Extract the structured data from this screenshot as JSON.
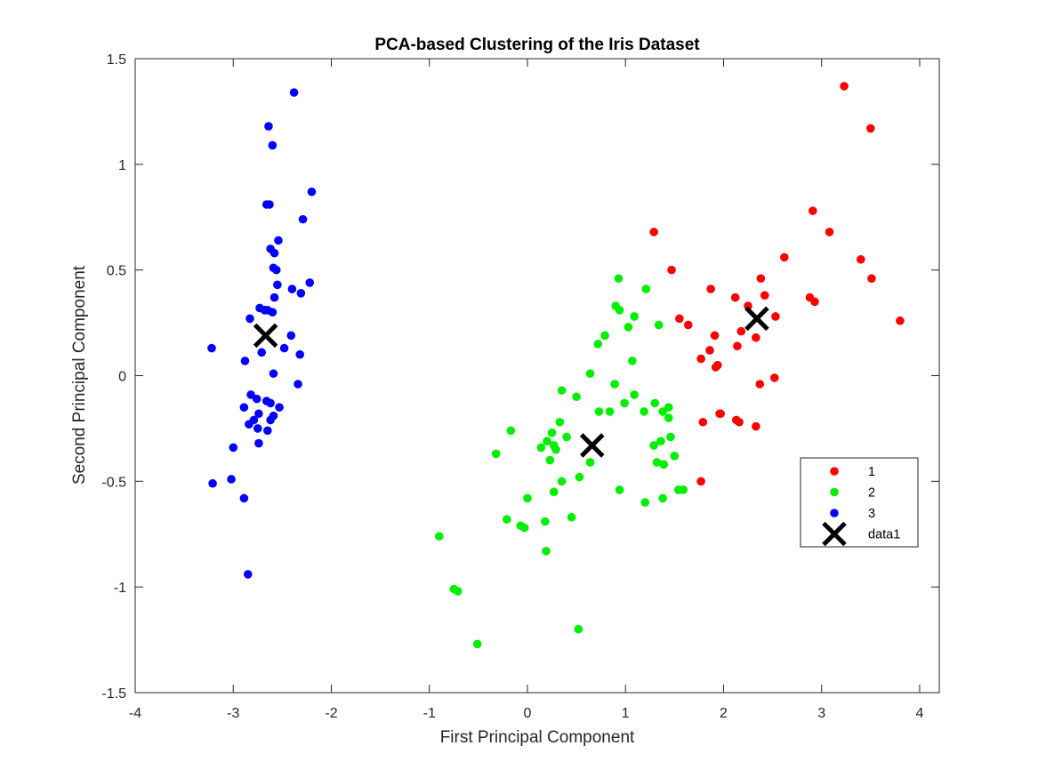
{
  "chart_data": {
    "type": "scatter",
    "title": "PCA-based Clustering of the Iris Dataset",
    "xlabel": "First Principal Component",
    "ylabel": "Second Principal Component",
    "xlim": [
      -4,
      4.2
    ],
    "ylim": [
      -1.5,
      1.5
    ],
    "xticks": [
      -4,
      -3,
      -2,
      -1,
      0,
      1,
      2,
      3,
      4
    ],
    "yticks": [
      -1.5,
      -1,
      -0.5,
      0,
      0.5,
      1,
      1.5
    ],
    "xtick_labels": [
      "-4",
      "-3",
      "-2",
      "-1",
      "0",
      "1",
      "2",
      "3",
      "4"
    ],
    "ytick_labels": [
      "-1.5",
      "-1",
      "-0.5",
      "0",
      "0.5",
      "1",
      "1.5"
    ],
    "grid": false,
    "legend_position": "lower-right",
    "series": [
      {
        "name": "1",
        "marker": "dot",
        "color": "#ff0000",
        "x": [
          3.23,
          3.5,
          1.29,
          2.91,
          3.08,
          3.4,
          3.51,
          1.47,
          2.62,
          1.87,
          2.12,
          2.38,
          2.42,
          2.53,
          1.55,
          1.64,
          2.88,
          2.93,
          3.8,
          2.25,
          2.33,
          1.91,
          1.94,
          1.77,
          2.14,
          2.18,
          1.86,
          1.92,
          1.96,
          2.37,
          2.52,
          1.97,
          2.13,
          2.16,
          2.33,
          1.79,
          1.77
        ],
        "y": [
          1.37,
          1.17,
          0.68,
          0.78,
          0.68,
          0.55,
          0.46,
          0.5,
          0.56,
          0.41,
          0.37,
          0.46,
          0.38,
          0.28,
          0.27,
          0.24,
          0.37,
          0.35,
          0.26,
          0.33,
          0.18,
          0.19,
          0.05,
          0.08,
          0.14,
          0.21,
          0.12,
          0.04,
          -0.18,
          -0.04,
          -0.01,
          -0.18,
          -0.21,
          -0.22,
          -0.24,
          -0.22,
          -0.5
        ]
      },
      {
        "name": "2",
        "marker": "dot",
        "color": "#00ee00",
        "x": [
          0.93,
          1.21,
          0.9,
          0.94,
          1.09,
          1.03,
          1.34,
          0.79,
          0.72,
          0.64,
          1.07,
          1.09,
          0.89,
          0.99,
          0.35,
          0.5,
          1.19,
          1.3,
          1.38,
          1.44,
          0.84,
          0.73,
          0.33,
          0.25,
          0.2,
          0.27,
          0.29,
          0.23,
          0.4,
          0.35,
          -0.17,
          -0.32,
          0.14,
          0.53,
          0.64,
          0.94,
          0.27,
          0.0,
          0.18,
          0.45,
          -0.21,
          -0.07,
          -0.03,
          0.19,
          1.2,
          1.38,
          1.54,
          1.59,
          1.29,
          1.32,
          1.36,
          1.44,
          1.39,
          1.46,
          1.5,
          -0.9,
          -0.75,
          -0.71,
          -0.51,
          0.52
        ],
        "y": [
          0.46,
          0.41,
          0.33,
          0.31,
          0.28,
          0.23,
          0.24,
          0.19,
          0.15,
          0.01,
          0.07,
          -0.09,
          -0.04,
          -0.13,
          -0.07,
          -0.1,
          -0.17,
          -0.13,
          -0.17,
          -0.15,
          -0.17,
          -0.17,
          -0.22,
          -0.27,
          -0.31,
          -0.33,
          -0.35,
          -0.4,
          -0.29,
          -0.5,
          -0.26,
          -0.37,
          -0.34,
          -0.48,
          -0.41,
          -0.54,
          -0.55,
          -0.58,
          -0.69,
          -0.67,
          -0.68,
          -0.71,
          -0.72,
          -0.83,
          -0.6,
          -0.58,
          -0.54,
          -0.54,
          -0.33,
          -0.41,
          -0.31,
          -0.2,
          -0.42,
          -0.29,
          -0.38,
          -0.76,
          -1.01,
          -1.02,
          -1.27,
          -1.2
        ]
      },
      {
        "name": "3",
        "marker": "dot",
        "color": "#0000ff",
        "x": [
          -2.38,
          -2.64,
          -2.6,
          -2.2,
          -2.63,
          -2.66,
          -2.29,
          -2.54,
          -2.62,
          -2.58,
          -2.59,
          -2.56,
          -2.55,
          -2.4,
          -2.22,
          -2.31,
          -2.58,
          -2.83,
          -2.73,
          -2.68,
          -2.65,
          -2.6,
          -2.41,
          -2.48,
          -2.71,
          -2.32,
          -2.88,
          -2.59,
          -2.34,
          -2.82,
          -2.76,
          -2.62,
          -2.66,
          -2.53,
          -2.89,
          -2.74,
          -2.59,
          -2.62,
          -2.84,
          -2.75,
          -2.79,
          -2.65,
          -2.74,
          -3.22,
          -3.0,
          -3.21,
          -3.02,
          -2.89,
          -2.85
        ],
        "y": [
          1.34,
          1.18,
          1.09,
          0.87,
          0.81,
          0.81,
          0.74,
          0.64,
          0.6,
          0.58,
          0.51,
          0.5,
          0.43,
          0.41,
          0.44,
          0.39,
          0.37,
          0.27,
          0.32,
          0.31,
          0.31,
          0.3,
          0.19,
          0.13,
          0.11,
          0.1,
          0.07,
          0.01,
          -0.04,
          -0.09,
          -0.11,
          -0.13,
          -0.12,
          -0.15,
          -0.15,
          -0.18,
          -0.19,
          -0.21,
          -0.23,
          -0.25,
          -0.21,
          -0.26,
          -0.32,
          0.13,
          -0.34,
          -0.51,
          -0.49,
          -0.58,
          -0.94
        ]
      },
      {
        "name": "data1",
        "marker": "x",
        "color": "#000000",
        "x": [
          2.34,
          0.66,
          -2.67
        ],
        "y": [
          0.27,
          -0.33,
          0.19
        ]
      }
    ]
  }
}
